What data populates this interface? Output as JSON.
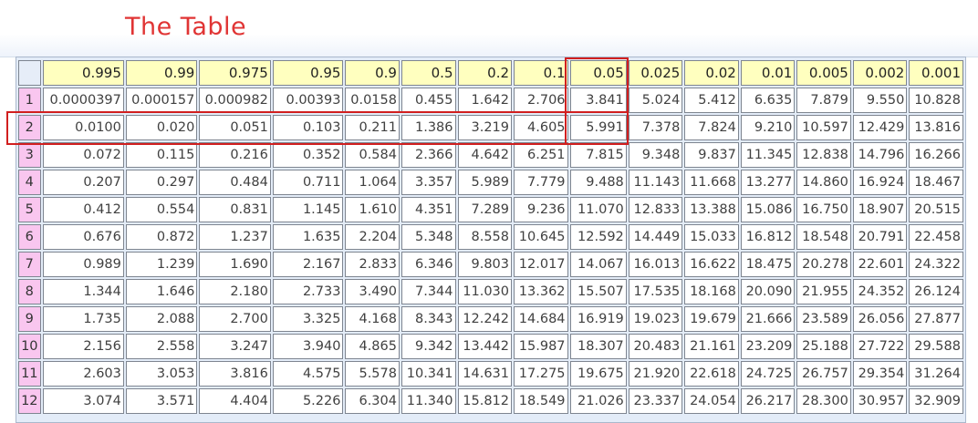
{
  "title": "The Table",
  "columns": [
    "0.995",
    "0.99",
    "0.975",
    "0.95",
    "0.9",
    "0.5",
    "0.2",
    "0.1",
    "0.05",
    "0.025",
    "0.02",
    "0.01",
    "0.005",
    "0.002",
    "0.001"
  ],
  "rows": [
    {
      "df": "1",
      "values": [
        "0.0000397",
        "0.000157",
        "0.000982",
        "0.00393",
        "0.0158",
        "0.455",
        "1.642",
        "2.706",
        "3.841",
        "5.024",
        "5.412",
        "6.635",
        "7.879",
        "9.550",
        "10.828"
      ]
    },
    {
      "df": "2",
      "values": [
        "0.0100",
        "0.020",
        "0.051",
        "0.103",
        "0.211",
        "1.386",
        "3.219",
        "4.605",
        "5.991",
        "7.378",
        "7.824",
        "9.210",
        "10.597",
        "12.429",
        "13.816"
      ]
    },
    {
      "df": "3",
      "values": [
        "0.072",
        "0.115",
        "0.216",
        "0.352",
        "0.584",
        "2.366",
        "4.642",
        "6.251",
        "7.815",
        "9.348",
        "9.837",
        "11.345",
        "12.838",
        "14.796",
        "16.266"
      ]
    },
    {
      "df": "4",
      "values": [
        "0.207",
        "0.297",
        "0.484",
        "0.711",
        "1.064",
        "3.357",
        "5.989",
        "7.779",
        "9.488",
        "11.143",
        "11.668",
        "13.277",
        "14.860",
        "16.924",
        "18.467"
      ]
    },
    {
      "df": "5",
      "values": [
        "0.412",
        "0.554",
        "0.831",
        "1.145",
        "1.610",
        "4.351",
        "7.289",
        "9.236",
        "11.070",
        "12.833",
        "13.388",
        "15.086",
        "16.750",
        "18.907",
        "20.515"
      ]
    },
    {
      "df": "6",
      "values": [
        "0.676",
        "0.872",
        "1.237",
        "1.635",
        "2.204",
        "5.348",
        "8.558",
        "10.645",
        "12.592",
        "14.449",
        "15.033",
        "16.812",
        "18.548",
        "20.791",
        "22.458"
      ]
    },
    {
      "df": "7",
      "values": [
        "0.989",
        "1.239",
        "1.690",
        "2.167",
        "2.833",
        "6.346",
        "9.803",
        "12.017",
        "14.067",
        "16.013",
        "16.622",
        "18.475",
        "20.278",
        "22.601",
        "24.322"
      ]
    },
    {
      "df": "8",
      "values": [
        "1.344",
        "1.646",
        "2.180",
        "2.733",
        "3.490",
        "7.344",
        "11.030",
        "13.362",
        "15.507",
        "17.535",
        "18.168",
        "20.090",
        "21.955",
        "24.352",
        "26.124"
      ]
    },
    {
      "df": "9",
      "values": [
        "1.735",
        "2.088",
        "2.700",
        "3.325",
        "4.168",
        "8.343",
        "12.242",
        "14.684",
        "16.919",
        "19.023",
        "19.679",
        "21.666",
        "23.589",
        "26.056",
        "27.877"
      ]
    },
    {
      "df": "10",
      "values": [
        "2.156",
        "2.558",
        "3.247",
        "3.940",
        "4.865",
        "9.342",
        "13.442",
        "15.987",
        "18.307",
        "20.483",
        "21.161",
        "23.209",
        "25.188",
        "27.722",
        "29.588"
      ]
    },
    {
      "df": "11",
      "values": [
        "2.603",
        "3.053",
        "3.816",
        "4.575",
        "5.578",
        "10.341",
        "14.631",
        "17.275",
        "19.675",
        "21.920",
        "22.618",
        "24.725",
        "26.757",
        "29.354",
        "31.264"
      ]
    },
    {
      "df": "12",
      "values": [
        "3.074",
        "3.571",
        "4.404",
        "5.226",
        "6.304",
        "11.340",
        "15.812",
        "18.549",
        "21.026",
        "23.337",
        "24.054",
        "26.217",
        "28.300",
        "30.957",
        "32.909"
      ]
    }
  ],
  "highlight": {
    "row": "2",
    "column": "0.05",
    "color": "#d11f1f"
  }
}
